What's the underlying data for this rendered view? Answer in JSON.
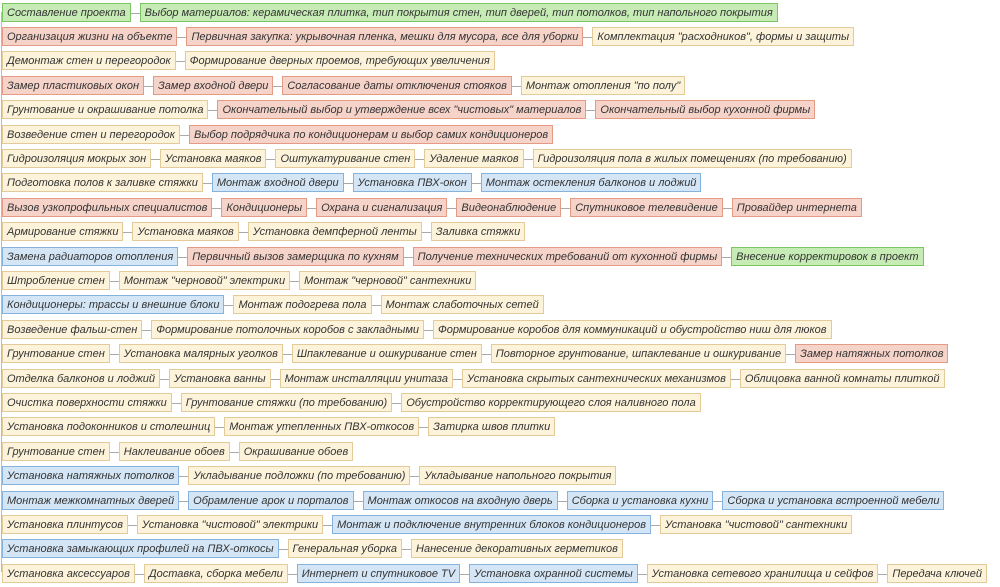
{
  "rows": [
    {
      "items": [
        {
          "label": "Составление проекта",
          "kind": "green"
        },
        {
          "label": "Выбор материалов: керамическая плитка, тип покрытия стен, тип дверей, тип потолков, тип напольного покрытия",
          "kind": "green"
        }
      ]
    },
    {
      "items": [
        {
          "label": "Организация жизни на объекте",
          "kind": "red"
        },
        {
          "label": "Первичная закупка: укрывочная пленка, мешки для мусора, все для уборки",
          "kind": "red"
        },
        {
          "label": "Комплектация \"расходников\", формы и защиты",
          "kind": "yellow"
        }
      ]
    },
    {
      "items": [
        {
          "label": "Демонтаж стен и перегородок",
          "kind": "yellow"
        },
        {
          "label": "Формирование дверных проемов, требующих увеличения",
          "kind": "yellow"
        }
      ]
    },
    {
      "items": [
        {
          "label": "Замер пластиковых окон",
          "kind": "red"
        },
        {
          "label": "Замер входной двери",
          "kind": "red"
        },
        {
          "label": "Согласование даты отключения стояков",
          "kind": "red"
        },
        {
          "label": "Монтаж отопления \"по полу\"",
          "kind": "yellow"
        }
      ]
    },
    {
      "items": [
        {
          "label": "Грунтование и окрашивание потолка",
          "kind": "yellow"
        },
        {
          "label": "Окончательный выбор и утверждение всех \"чистовых\" материалов",
          "kind": "red"
        },
        {
          "label": "Окончательный выбор кухонной фирмы",
          "kind": "red"
        }
      ]
    },
    {
      "items": [
        {
          "label": "Возведение стен и перегородок",
          "kind": "yellow"
        },
        {
          "label": "Выбор подрядчика по кондиционерам и выбор самих кондиционеров",
          "kind": "red"
        }
      ]
    },
    {
      "items": [
        {
          "label": "Гидроизоляция мокрых зон",
          "kind": "yellow"
        },
        {
          "label": "Установка маяков",
          "kind": "yellow"
        },
        {
          "label": "Оштукатуривание стен",
          "kind": "yellow"
        },
        {
          "label": "Удаление маяков",
          "kind": "yellow"
        },
        {
          "label": "Гидроизоляция пола в жилых помещениях (по требованию)",
          "kind": "yellow"
        }
      ]
    },
    {
      "items": [
        {
          "label": "Подготовка полов к заливке стяжки",
          "kind": "yellow"
        },
        {
          "label": "Монтаж входной двери",
          "kind": "blue"
        },
        {
          "label": "Установка ПВХ-окон",
          "kind": "blue"
        },
        {
          "label": "Монтаж остекления балконов и лоджий",
          "kind": "blue"
        }
      ]
    },
    {
      "items": [
        {
          "label": "Вызов узкопрофильных специалистов",
          "kind": "red"
        },
        {
          "label": "Кондиционеры",
          "kind": "red"
        },
        {
          "label": "Охрана и сигнализация",
          "kind": "red"
        },
        {
          "label": "Видеонаблюдение",
          "kind": "red"
        },
        {
          "label": "Спутниковое телевидение",
          "kind": "red"
        },
        {
          "label": "Провайдер интернета",
          "kind": "red"
        }
      ]
    },
    {
      "items": [
        {
          "label": "Армирование стяжки",
          "kind": "yellow"
        },
        {
          "label": "Установка маяков",
          "kind": "yellow"
        },
        {
          "label": "Установка демпферной ленты",
          "kind": "yellow"
        },
        {
          "label": "Заливка стяжки",
          "kind": "yellow"
        }
      ]
    },
    {
      "items": [
        {
          "label": "Замена радиаторов отопления",
          "kind": "blue"
        },
        {
          "label": "Первичный вызов замерщика по кухням",
          "kind": "red"
        },
        {
          "label": "Получение технических требований от кухонной фирмы",
          "kind": "red"
        },
        {
          "label": "Внесение корректировок в проект",
          "kind": "green"
        }
      ]
    },
    {
      "items": [
        {
          "label": "Штробление стен",
          "kind": "yellow"
        },
        {
          "label": "Монтаж \"черновой\" электрики",
          "kind": "yellow"
        },
        {
          "label": "Монтаж \"черновой\" сантехники",
          "kind": "yellow"
        }
      ]
    },
    {
      "items": [
        {
          "label": "Кондиционеры: трассы и внешние блоки",
          "kind": "blue"
        },
        {
          "label": "Монтаж подогрева пола",
          "kind": "yellow"
        },
        {
          "label": "Монтаж слаботочных сетей",
          "kind": "yellow"
        }
      ]
    },
    {
      "items": [
        {
          "label": "Возведение фальш-стен",
          "kind": "yellow"
        },
        {
          "label": "Формирование потолочных коробов с закладными",
          "kind": "yellow"
        },
        {
          "label": "Формирование коробов для коммуникаций и обустройство ниш для люков",
          "kind": "yellow"
        }
      ]
    },
    {
      "items": [
        {
          "label": "Грунтование стен",
          "kind": "yellow"
        },
        {
          "label": "Установка малярных уголков",
          "kind": "yellow"
        },
        {
          "label": "Шпаклевание и ошкуривание стен",
          "kind": "yellow"
        },
        {
          "label": "Повторное грунтование, шпаклевание и ошкуривание",
          "kind": "yellow"
        },
        {
          "label": "Замер натяжных потолков",
          "kind": "red"
        }
      ]
    },
    {
      "items": [
        {
          "label": "Отделка балконов и лоджий",
          "kind": "yellow"
        },
        {
          "label": "Установка ванны",
          "kind": "yellow"
        },
        {
          "label": "Монтаж инсталляции унитаза",
          "kind": "yellow"
        },
        {
          "label": "Установка скрытых сантехнических механизмов",
          "kind": "yellow"
        },
        {
          "label": "Облицовка ванной комнаты плиткой",
          "kind": "yellow"
        }
      ]
    },
    {
      "items": [
        {
          "label": "Очистка поверхности стяжки",
          "kind": "yellow"
        },
        {
          "label": "Грунтование стяжки (по требованию)",
          "kind": "yellow"
        },
        {
          "label": "Обустройство корректирующего слоя наливного пола",
          "kind": "yellow"
        }
      ]
    },
    {
      "items": [
        {
          "label": "Установка подоконников и столешниц",
          "kind": "yellow"
        },
        {
          "label": "Монтаж утепленных ПВХ-откосов",
          "kind": "yellow"
        },
        {
          "label": "Затирка швов плитки",
          "kind": "yellow"
        }
      ]
    },
    {
      "items": [
        {
          "label": "Грунтование стен",
          "kind": "yellow"
        },
        {
          "label": "Наклеивание обоев",
          "kind": "yellow"
        },
        {
          "label": "Окрашивание обоев",
          "kind": "yellow"
        }
      ]
    },
    {
      "items": [
        {
          "label": "Установка натяжных потолков",
          "kind": "blue"
        },
        {
          "label": "Укладывание подложки (по требованию)",
          "kind": "yellow"
        },
        {
          "label": "Укладывание напольного покрытия",
          "kind": "yellow"
        }
      ]
    },
    {
      "items": [
        {
          "label": "Монтаж межкомнатных дверей",
          "kind": "blue"
        },
        {
          "label": "Обрамление арок и порталов",
          "kind": "blue"
        },
        {
          "label": "Монтаж откосов на входную дверь",
          "kind": "blue"
        },
        {
          "label": "Сборка и установка кухни",
          "kind": "blue"
        },
        {
          "label": "Сборка и установка встроенной мебели",
          "kind": "blue"
        }
      ]
    },
    {
      "items": [
        {
          "label": "Установка плинтусов",
          "kind": "yellow"
        },
        {
          "label": "Установка \"чистовой\" электрики",
          "kind": "yellow"
        },
        {
          "label": "Монтаж и подключение внутренних блоков кондиционеров",
          "kind": "blue"
        },
        {
          "label": "Установка \"чистовой\" сантехники",
          "kind": "yellow"
        }
      ]
    },
    {
      "items": [
        {
          "label": "Установка замыкающих профилей на ПВХ-откосы",
          "kind": "blue"
        },
        {
          "label": "Генеральная уборка",
          "kind": "yellow"
        },
        {
          "label": "Нанесение декоративных герметиков",
          "kind": "yellow"
        }
      ]
    },
    {
      "items": [
        {
          "label": "Установка аксессуаров",
          "kind": "yellow"
        },
        {
          "label": "Доставка, сборка мебели",
          "kind": "yellow"
        },
        {
          "label": "Интернет и спутниковое TV",
          "kind": "blue"
        },
        {
          "label": "Установка охранной системы",
          "kind": "blue"
        },
        {
          "label": "Установка сетевого хранилища и сейфов",
          "kind": "yellow"
        },
        {
          "label": "Передача ключей",
          "kind": "yellow"
        }
      ]
    }
  ]
}
